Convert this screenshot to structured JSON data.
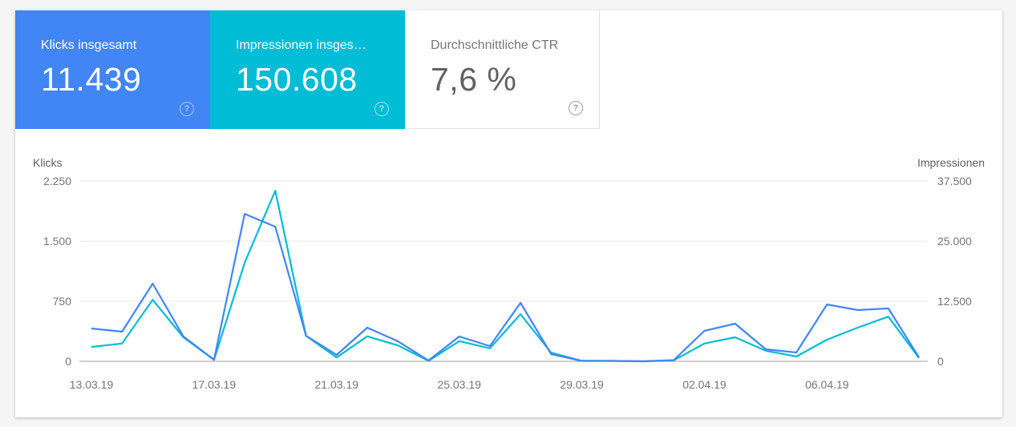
{
  "metrics": [
    {
      "label": "Klicks insgesamt",
      "value": "11.439",
      "help_icon": "help-circle-icon",
      "color": "#4285f4"
    },
    {
      "label": "Impressionen insges…",
      "value": "150.608",
      "help_icon": "help-circle-icon",
      "color": "#00bcd4"
    },
    {
      "label": "Durchschnittliche CTR",
      "value": "7,6 %",
      "help_icon": "help-circle-icon",
      "color": "#ffffff"
    }
  ],
  "chart_data": {
    "type": "line",
    "title": "",
    "x": [
      "13.03.19",
      "14.03.19",
      "15.03.19",
      "16.03.19",
      "17.03.19",
      "18.03.19",
      "19.03.19",
      "20.03.19",
      "21.03.19",
      "22.03.19",
      "23.03.19",
      "24.03.19",
      "25.03.19",
      "26.03.19",
      "27.03.19",
      "28.03.19",
      "29.03.19",
      "30.03.19",
      "31.03.19",
      "01.04.19",
      "02.04.19",
      "03.04.19",
      "04.04.19",
      "05.04.19",
      "06.04.19",
      "07.04.19",
      "08.04.19",
      "09.04.19"
    ],
    "xtick_labels": [
      "13.03.19",
      "17.03.19",
      "21.03.19",
      "25.03.19",
      "29.03.19",
      "02.04.19",
      "06.04.19"
    ],
    "series": [
      {
        "name": "Klicks",
        "axis": "left",
        "color": "#4285f4",
        "values": [
          410,
          370,
          970,
          310,
          20,
          1840,
          1680,
          320,
          80,
          420,
          250,
          10,
          310,
          190,
          730,
          90,
          5,
          5,
          0,
          15,
          380,
          470,
          150,
          110,
          710,
          640,
          660,
          50
        ]
      },
      {
        "name": "Impressionen",
        "axis": "right",
        "color": "#00bcd4",
        "values": [
          3000,
          3700,
          12800,
          5000,
          300,
          20500,
          35500,
          5300,
          800,
          5200,
          3300,
          100,
          4200,
          2700,
          9800,
          1800,
          100,
          80,
          0,
          200,
          3700,
          5000,
          2200,
          1000,
          4500,
          7000,
          9300,
          700
        ]
      }
    ],
    "ylabel": "Klicks",
    "ylabel_right": "Impressionen",
    "ylim": [
      0,
      2250
    ],
    "ylim_right": [
      0,
      37500
    ],
    "yticks": [
      "0",
      "750",
      "1.500",
      "2.250"
    ],
    "yticks_right": [
      "0",
      "12.500",
      "25.000",
      "37.500"
    ],
    "grid": true,
    "legend": "none"
  }
}
